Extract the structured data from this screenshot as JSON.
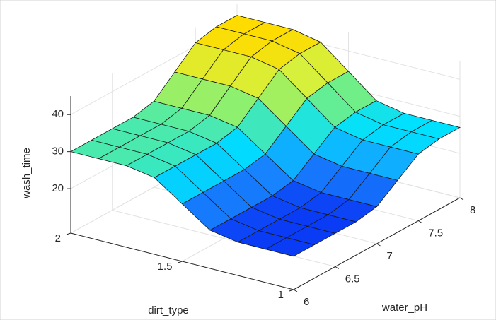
{
  "chart_data": {
    "type": "surface",
    "xlabel": "water_pH",
    "ylabel": "dirt_type",
    "zlabel": "wash_time",
    "x": [
      6,
      6.25,
      6.5,
      6.75,
      7,
      7.25,
      7.5,
      7.75,
      8
    ],
    "y": [
      1,
      1.125,
      1.25,
      1.375,
      1.5,
      1.625,
      1.75,
      1.875,
      2
    ],
    "z": [
      [
        17,
        17,
        17,
        18.3,
        23.5,
        28.7,
        30,
        30,
        30
      ],
      [
        17,
        17,
        17,
        18.3,
        23.5,
        28.7,
        30,
        30,
        30
      ],
      [
        17,
        17,
        17,
        18.3,
        23.5,
        28.7,
        30,
        30,
        30
      ],
      [
        17,
        17,
        17,
        18.3,
        23.5,
        28.7,
        30,
        30,
        30
      ],
      [
        18,
        18,
        18,
        19.3,
        24.6,
        29.9,
        31.2,
        31.2,
        31.2
      ],
      [
        22,
        22,
        22,
        23.4,
        29,
        34.6,
        36,
        36,
        36
      ],
      [
        26,
        26,
        26,
        27.5,
        33.4,
        39.3,
        40.8,
        40.8,
        40.8
      ],
      [
        27,
        27,
        27,
        28.5,
        34.5,
        40.5,
        42,
        42,
        42
      ],
      [
        27,
        27,
        27,
        28.5,
        34.5,
        40.5,
        42,
        42,
        42
      ]
    ],
    "xlim": [
      6,
      8
    ],
    "ylim": [
      1,
      2
    ],
    "zlim": [
      8,
      45
    ],
    "xticks": [
      6,
      6.5,
      7,
      7.5,
      8
    ],
    "yticks": [
      1,
      1.5,
      2
    ],
    "zticks": [
      20,
      30,
      40
    ],
    "grid": true,
    "colormap": [
      "#0a3cf5",
      "#1a8cff",
      "#00e0ff",
      "#7cf07a",
      "#d8f03a",
      "#ffdc00"
    ]
  }
}
